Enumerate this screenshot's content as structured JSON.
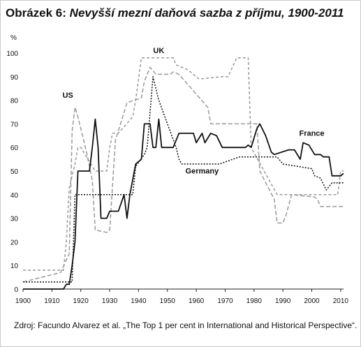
{
  "title_prefix": "Obrázek 6:",
  "title_rest": "Nevyšší mezní daňová sazba z příjmu, 1900-2011",
  "source": "Zdroj: Facundo Alvarez et al. „The Top 1 per cent in International and Historical Perspective“.",
  "chart_data": {
    "type": "line",
    "title": "Nevyšší mezní daňová sazba z příjmu, 1900-2011",
    "ylabel": "%",
    "xlabel": "",
    "xlim": [
      1900,
      2011
    ],
    "ylim": [
      0,
      100
    ],
    "xticks": [
      1900,
      1910,
      1920,
      1930,
      1940,
      1950,
      1960,
      1970,
      1980,
      1990,
      2000,
      2010
    ],
    "yticks": [
      0,
      10,
      20,
      30,
      40,
      50,
      60,
      70,
      80,
      90,
      100
    ],
    "grid": false,
    "series": [
      {
        "name": "US",
        "color": "#999999",
        "dash": "6,3",
        "points": [
          [
            1900,
            3
          ],
          [
            1913,
            7
          ],
          [
            1916,
            15
          ],
          [
            1917,
            67
          ],
          [
            1918,
            77
          ],
          [
            1919,
            73
          ],
          [
            1922,
            58
          ],
          [
            1924,
            46
          ],
          [
            1925,
            25
          ],
          [
            1929,
            24
          ],
          [
            1930,
            25
          ],
          [
            1932,
            63
          ],
          [
            1936,
            79
          ],
          [
            1941,
            81
          ],
          [
            1942,
            88
          ],
          [
            1944,
            94
          ],
          [
            1946,
            91
          ],
          [
            1951,
            91
          ],
          [
            1952,
            92
          ],
          [
            1954,
            91
          ],
          [
            1964,
            77
          ],
          [
            1965,
            70
          ],
          [
            1981,
            70
          ],
          [
            1982,
            50
          ],
          [
            1987,
            38
          ],
          [
            1988,
            28
          ],
          [
            1990,
            28
          ],
          [
            1991,
            31
          ],
          [
            1993,
            40
          ],
          [
            2001,
            39
          ],
          [
            2002,
            38
          ],
          [
            2003,
            35
          ],
          [
            2011,
            35
          ]
        ]
      },
      {
        "name": "UK",
        "color": "#999999",
        "dash": "4,3",
        "points": [
          [
            1900,
            8
          ],
          [
            1909,
            8
          ],
          [
            1910,
            8
          ],
          [
            1914,
            8
          ],
          [
            1915,
            20
          ],
          [
            1916,
            43
          ],
          [
            1918,
            53
          ],
          [
            1919,
            60
          ],
          [
            1920,
            60
          ],
          [
            1925,
            50
          ],
          [
            1929,
            50
          ],
          [
            1930,
            60
          ],
          [
            1931,
            66
          ],
          [
            1933,
            66
          ],
          [
            1938,
            73
          ],
          [
            1939,
            80
          ],
          [
            1941,
            98
          ],
          [
            1952,
            98
          ],
          [
            1953,
            95
          ],
          [
            1957,
            93
          ],
          [
            1961,
            89
          ],
          [
            1969,
            90
          ],
          [
            1971,
            90
          ],
          [
            1974,
            98
          ],
          [
            1978,
            98
          ],
          [
            1979,
            60
          ],
          [
            1988,
            40
          ],
          [
            2009,
            40
          ],
          [
            2010,
            50
          ],
          [
            2011,
            50
          ]
        ]
      },
      {
        "name": "France",
        "color": "#111111",
        "dash": "",
        "points": [
          [
            1900,
            0
          ],
          [
            1914,
            0
          ],
          [
            1915,
            2
          ],
          [
            1916,
            2
          ],
          [
            1917,
            10
          ],
          [
            1918,
            20
          ],
          [
            1919,
            50
          ],
          [
            1923,
            50
          ],
          [
            1924,
            60
          ],
          [
            1925,
            72
          ],
          [
            1926,
            60
          ],
          [
            1927,
            30
          ],
          [
            1929,
            30
          ],
          [
            1930,
            33
          ],
          [
            1933,
            33
          ],
          [
            1935,
            40
          ],
          [
            1936,
            30
          ],
          [
            1937,
            40
          ],
          [
            1939,
            53
          ],
          [
            1941,
            55
          ],
          [
            1942,
            70
          ],
          [
            1944,
            70
          ],
          [
            1945,
            60
          ],
          [
            1946,
            60
          ],
          [
            1947,
            72
          ],
          [
            1948,
            60
          ],
          [
            1952,
            60
          ],
          [
            1954,
            66
          ],
          [
            1959,
            66
          ],
          [
            1960,
            62
          ],
          [
            1962,
            66
          ],
          [
            1963,
            62
          ],
          [
            1965,
            66
          ],
          [
            1967,
            65
          ],
          [
            1969,
            60
          ],
          [
            1977,
            60
          ],
          [
            1978,
            61
          ],
          [
            1979,
            60
          ],
          [
            1981,
            68
          ],
          [
            1982,
            70
          ],
          [
            1984,
            65
          ],
          [
            1986,
            58
          ],
          [
            1987,
            57
          ],
          [
            1992,
            59
          ],
          [
            1994,
            59
          ],
          [
            1996,
            55
          ],
          [
            1997,
            62
          ],
          [
            1999,
            61
          ],
          [
            2001,
            57
          ],
          [
            2003,
            57
          ],
          [
            2004,
            56
          ],
          [
            2006,
            56
          ],
          [
            2007,
            48
          ],
          [
            2010,
            48
          ],
          [
            2011,
            49
          ]
        ]
      },
      {
        "name": "Germany",
        "color": "#111111",
        "dash": "2,2",
        "points": [
          [
            1900,
            3
          ],
          [
            1917,
            3
          ],
          [
            1918,
            40
          ],
          [
            1938,
            40
          ],
          [
            1939,
            52
          ],
          [
            1942,
            57
          ],
          [
            1943,
            60
          ],
          [
            1945,
            90
          ],
          [
            1946,
            85
          ],
          [
            1947,
            80
          ],
          [
            1953,
            60
          ],
          [
            1954,
            55
          ],
          [
            1955,
            53
          ],
          [
            1958,
            53
          ],
          [
            1968,
            53
          ],
          [
            1975,
            56
          ],
          [
            1988,
            56
          ],
          [
            1990,
            53
          ],
          [
            2000,
            51
          ],
          [
            2001,
            48
          ],
          [
            2003,
            47
          ],
          [
            2005,
            42
          ],
          [
            2007,
            45
          ],
          [
            2011,
            45
          ]
        ]
      }
    ],
    "labels": [
      {
        "text": "US",
        "x": 1915.5,
        "y": 81
      },
      {
        "text": "UK",
        "x": 1947,
        "y": 100
      },
      {
        "text": "France",
        "x": 2000,
        "y": 65
      },
      {
        "text": "Germany",
        "x": 1962,
        "y": 49
      }
    ]
  }
}
